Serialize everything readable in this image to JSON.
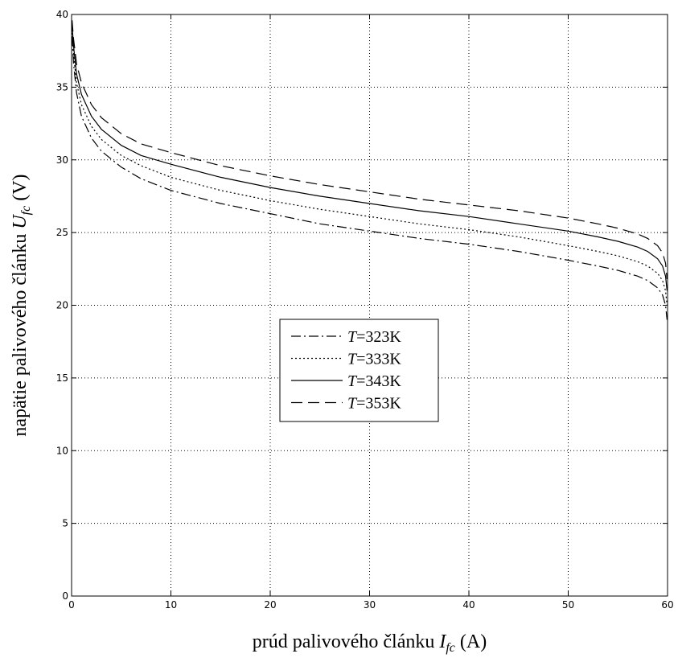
{
  "chart_data": {
    "type": "line",
    "xlim": [
      0,
      60
    ],
    "ylim": [
      0,
      40
    ],
    "xticks": [
      "0",
      "10",
      "20",
      "30",
      "40",
      "50",
      "60"
    ],
    "yticks": [
      "0",
      "5",
      "10",
      "15",
      "20",
      "25",
      "30",
      "35",
      "40"
    ],
    "grid": true,
    "legend_position": "center",
    "xlabel": {
      "prefix": "prúd palivového článku ",
      "symbol": "I",
      "subscript": "fc",
      "unit": " (A)"
    },
    "ylabel": {
      "prefix": "napätie palivového článku ",
      "symbol": "U",
      "subscript": "fc",
      "unit": " (V)"
    },
    "series": [
      {
        "name": "T =323K",
        "legend_symbol": "T",
        "legend_value": "=323K",
        "dash": "dashdot",
        "x": [
          0.05,
          0.2,
          0.5,
          1,
          2,
          3,
          5,
          7,
          10,
          15,
          20,
          25,
          30,
          35,
          40,
          45,
          50,
          53,
          55,
          57,
          58,
          59,
          59.5,
          59.8,
          59.95
        ],
        "y": [
          38.5,
          36.6,
          34.6,
          33.0,
          31.5,
          30.6,
          29.5,
          28.7,
          27.9,
          27.0,
          26.3,
          25.6,
          25.1,
          24.6,
          24.2,
          23.7,
          23.1,
          22.7,
          22.4,
          22.0,
          21.7,
          21.2,
          20.7,
          20.0,
          19.0
        ]
      },
      {
        "name": "T =333K",
        "legend_symbol": "T",
        "legend_value": "=333K",
        "dash": "dotted",
        "x": [
          0.05,
          0.2,
          0.5,
          1,
          2,
          3,
          5,
          7,
          10,
          15,
          20,
          25,
          30,
          35,
          40,
          45,
          50,
          53,
          55,
          57,
          58,
          59,
          59.5,
          59.8,
          59.95
        ],
        "y": [
          39.0,
          37.2,
          35.3,
          33.8,
          32.3,
          31.4,
          30.3,
          29.6,
          28.8,
          27.9,
          27.2,
          26.6,
          26.1,
          25.6,
          25.2,
          24.7,
          24.1,
          23.7,
          23.4,
          23.0,
          22.7,
          22.2,
          21.7,
          21.0,
          20.0
        ]
      },
      {
        "name": "T =343K",
        "legend_symbol": "T",
        "legend_value": "=343K",
        "dash": "solid",
        "x": [
          0.05,
          0.2,
          0.5,
          1,
          2,
          3,
          5,
          7,
          10,
          15,
          20,
          25,
          30,
          35,
          40,
          45,
          50,
          53,
          55,
          57,
          58,
          59,
          59.5,
          59.8,
          59.95
        ],
        "y": [
          39.3,
          37.8,
          35.9,
          34.5,
          33.0,
          32.1,
          31.0,
          30.3,
          29.7,
          28.8,
          28.1,
          27.5,
          27.0,
          26.5,
          26.1,
          25.6,
          25.1,
          24.7,
          24.4,
          24.0,
          23.7,
          23.2,
          22.7,
          22.0,
          21.0
        ]
      },
      {
        "name": "T =353K",
        "legend_symbol": "T",
        "legend_value": "=353K",
        "dash": "dashed",
        "x": [
          0.05,
          0.2,
          0.5,
          1,
          2,
          3,
          5,
          7,
          10,
          15,
          20,
          25,
          30,
          35,
          40,
          45,
          50,
          53,
          55,
          57,
          58,
          59,
          59.5,
          59.8,
          59.95
        ],
        "y": [
          39.6,
          38.3,
          36.6,
          35.3,
          33.8,
          32.9,
          31.8,
          31.1,
          30.5,
          29.6,
          28.9,
          28.3,
          27.8,
          27.3,
          26.9,
          26.5,
          26.0,
          25.6,
          25.3,
          24.9,
          24.6,
          24.1,
          23.6,
          22.9,
          21.8
        ]
      }
    ]
  }
}
